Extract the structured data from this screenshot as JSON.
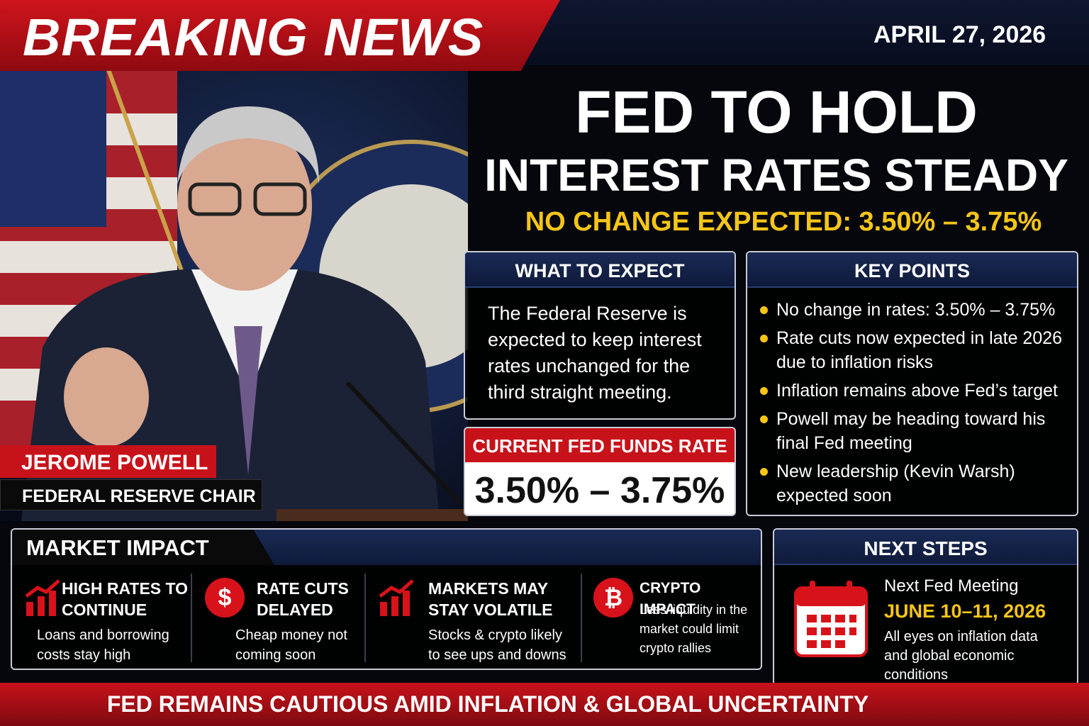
{
  "header": {
    "banner": "BREAKING NEWS",
    "date": "APRIL 27, 2026"
  },
  "headline": {
    "line1": "FED TO HOLD",
    "line2": "INTEREST RATES STEADY",
    "subhead": "NO CHANGE EXPECTED: 3.50% – 3.75%"
  },
  "person": {
    "name": "JEROME POWELL",
    "role": "FEDERAL RESERVE CHAIR"
  },
  "what_to_expect": {
    "title": "WHAT TO EXPECT",
    "body": "The Federal Reserve is expected to keep interest rates unchanged for the third straight meeting."
  },
  "current_rate": {
    "title": "CURRENT FED FUNDS RATE",
    "value": "3.50% – 3.75%"
  },
  "key_points": {
    "title": "KEY POINTS",
    "items": [
      "No change in rates: 3.50% – 3.75%",
      "Rate cuts now expected in late 2026 due to inflation risks",
      "Inflation remains above Fed’s target",
      "Powell may be heading toward his final Fed meeting",
      "New leadership (Kevin Warsh) expected soon"
    ]
  },
  "market_impact": {
    "title": "MARKET IMPACT",
    "items": [
      {
        "title": "HIGH RATES TO CONTINUE",
        "body": "Loans and borrowing costs stay high"
      },
      {
        "icon": "$",
        "title": "RATE CUTS DELAYED",
        "body": "Cheap money not coming soon"
      },
      {
        "title": "MARKETS MAY STAY VOLATILE",
        "body": "Stocks & crypto likely to see ups and downs"
      },
      {
        "icon": "₿",
        "title": "CRYPTO IMPACT",
        "body": "Less liquidity in the market could limit crypto rallies"
      }
    ]
  },
  "next_steps": {
    "title": "NEXT STEPS",
    "label": "Next Fed Meeting",
    "date": "JUNE 10–11, 2026",
    "body": "All eyes on inflation data and global economic conditions"
  },
  "footer": {
    "ticker": "FED REMAINS CAUTIOUS AMID INFLATION & GLOBAL UNCERTAINTY"
  }
}
